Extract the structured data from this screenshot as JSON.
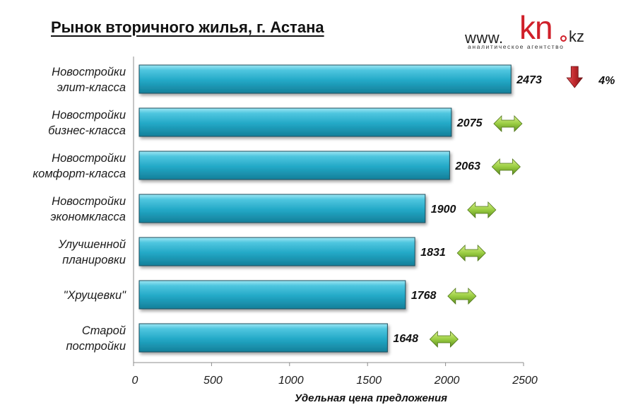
{
  "page": {
    "title": "Рынок вторичного жилья, г. Астана"
  },
  "logo": {
    "www": "www.",
    "brand": "kn",
    "tld": "kz",
    "tagline": "аналитическое агентство",
    "brand_color": "#d0202a"
  },
  "chart_data": {
    "type": "bar",
    "orientation": "horizontal",
    "title": "Рынок вторичного жилья, г. Астана",
    "xlabel": "Удельная цена предложения",
    "ylabel": "",
    "xlim": [
      0,
      2500
    ],
    "xticks": [
      0,
      500,
      1000,
      1500,
      2000,
      2500
    ],
    "grid": false,
    "bar_color": "#2bb3cf",
    "categories": [
      [
        "Новостройки",
        "элит-класса"
      ],
      [
        "Новостройки",
        "бизнес-класса"
      ],
      [
        "Новостройки",
        "комфорт-класса"
      ],
      [
        "Новостройки",
        "экономкласса"
      ],
      [
        "Улучшенной",
        "планировки"
      ],
      [
        "\"Хрущевки\""
      ],
      [
        "Старой",
        "постройки"
      ]
    ],
    "values": [
      2473,
      2075,
      2063,
      1900,
      1831,
      1768,
      1648
    ],
    "trend_icons": [
      "down-arrow-icon",
      "both-arrow-icon",
      "both-arrow-icon",
      "both-arrow-icon",
      "both-arrow-icon",
      "both-arrow-icon",
      "both-arrow-icon"
    ],
    "trend_labels": [
      "4%",
      "",
      "",
      "",
      "",
      "",
      ""
    ],
    "trend_colors": {
      "down": "#c0282d",
      "flat": "#8cc43c"
    }
  }
}
